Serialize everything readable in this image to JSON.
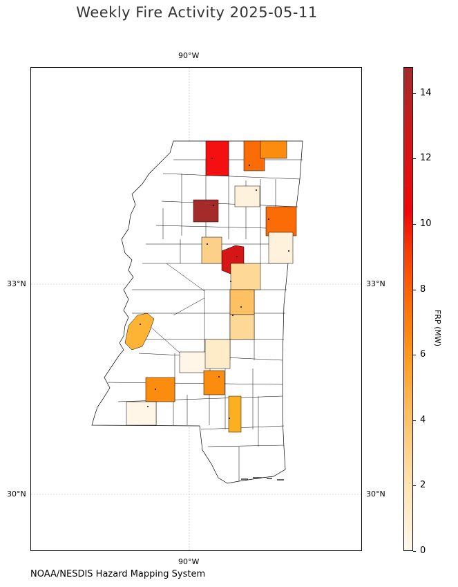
{
  "title": "Weekly Fire Activity 2025-05-11",
  "attribution": "NOAA/NESDIS Hazard Mapping System",
  "map": {
    "longitude_labels": [
      "90°W",
      "90°W"
    ],
    "latitude_labels": {
      "left": [
        "33°N",
        "30°N"
      ],
      "right": [
        "33°N",
        "30°N"
      ]
    },
    "colors": {
      "county_border": "#000000",
      "no_fire": "#ffffff",
      "gridline": "#b0b0b0"
    }
  },
  "colorbar": {
    "label": "FRP (MW)",
    "ticks": [
      "0",
      "2",
      "4",
      "6",
      "8",
      "10",
      "12",
      "14"
    ],
    "range": [
      0,
      14.8
    ],
    "colormap": [
      "#fff8ec",
      "#fee3ad",
      "#fdc062",
      "#fca327",
      "#fb8c0e",
      "#fb6c06",
      "#f83c04",
      "#f00808",
      "#d61616",
      "#a52a2a"
    ]
  },
  "chart_data": {
    "type": "choropleth",
    "title": "Weekly Fire Activity 2025-05-11",
    "value_label": "FRP (MW)",
    "vmin": 0,
    "vmax": 14.8,
    "filled_county_frp": [
      9.8,
      6.5,
      5.8,
      1.0,
      14.8,
      6.5,
      11.8,
      2.5,
      1.0,
      2.0,
      3.0,
      1.5,
      3.5,
      1.3,
      6.3,
      5.2,
      0.5,
      4.2,
      0.5
    ]
  }
}
